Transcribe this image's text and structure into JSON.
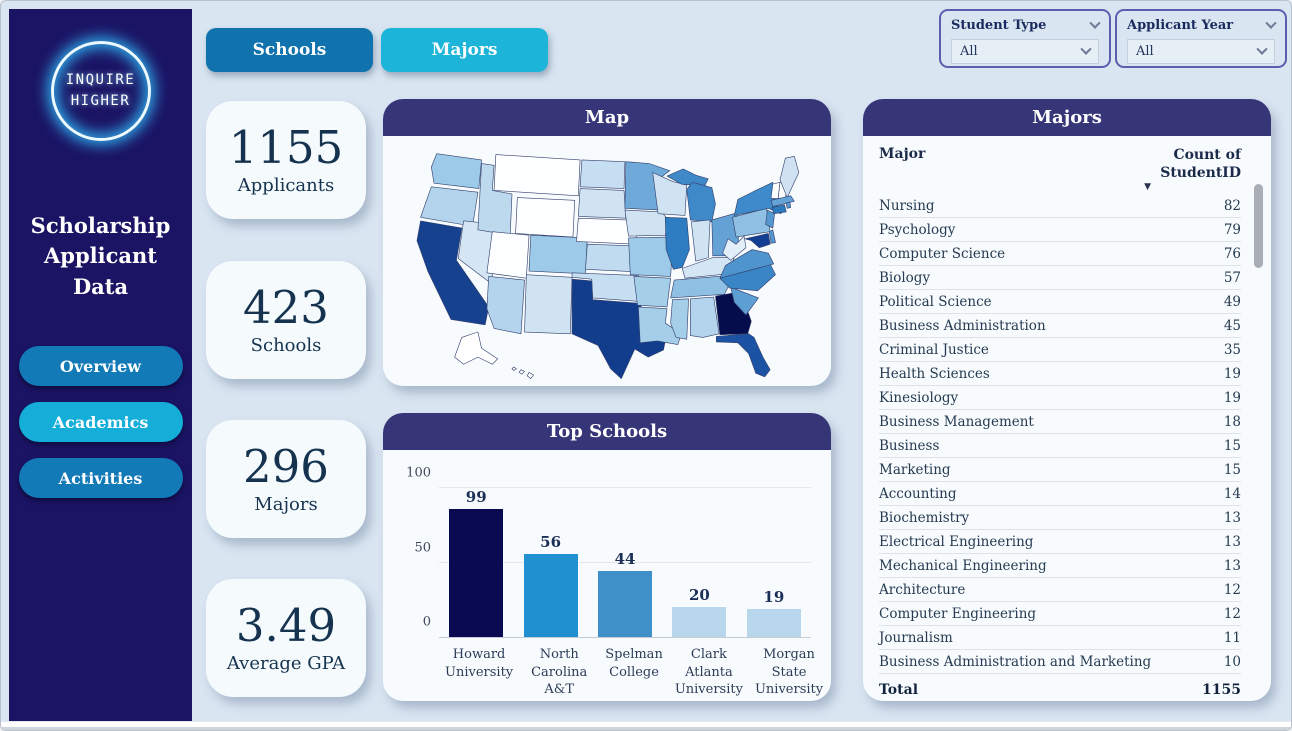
{
  "sidebar": {
    "logo": {
      "line1": "INQUIRE",
      "line2": "HIGHER"
    },
    "title": "Scholarship Applicant Data",
    "nav": [
      {
        "label": "Overview",
        "active": false
      },
      {
        "label": "Academics",
        "active": true
      },
      {
        "label": "Activities",
        "active": false
      }
    ]
  },
  "tabs": [
    {
      "label": "Schools",
      "color": "#1173ae"
    },
    {
      "label": "Majors",
      "color": "#1cb5d9"
    }
  ],
  "filters": [
    {
      "label": "Student Type",
      "value": "All"
    },
    {
      "label": "Applicant Year",
      "value": "All"
    }
  ],
  "kpis": [
    {
      "value": "1155",
      "label": "Applicants"
    },
    {
      "value": "423",
      "label": "Schools"
    },
    {
      "value": "296",
      "label": "Majors"
    },
    {
      "value": "3.49",
      "label": "Average GPA"
    }
  ],
  "panels": {
    "map": {
      "title": "Map"
    },
    "top_schools": {
      "title": "Top Schools"
    },
    "majors": {
      "title": "Majors"
    }
  },
  "theme": {
    "banner": "#353578",
    "sidebar": "#1b1464",
    "page_bg": "#d9e5f1",
    "nav_default": "#137ab8",
    "nav_active": "#14aed9",
    "neon": "#2fa9e8"
  },
  "chart_data": [
    {
      "type": "heatmap",
      "subtype": "us-choropleth",
      "title": "Map",
      "legend": "darker blue = more applicants from that state",
      "no_data_fill": "#ffffff",
      "states": [
        {
          "id": "WA",
          "fill": "#9ccae8"
        },
        {
          "id": "OR",
          "fill": "#b3d4ec"
        },
        {
          "id": "CA",
          "fill": "#15418f"
        },
        {
          "id": "NV",
          "fill": "#d4e6f4"
        },
        {
          "id": "ID",
          "fill": "#bdd9ee"
        },
        {
          "id": "MT",
          "fill": "#fdfeff"
        },
        {
          "id": "WY",
          "fill": "#fdfeff"
        },
        {
          "id": "UT",
          "fill": "#fdfeff"
        },
        {
          "id": "CO",
          "fill": "#9ccae8"
        },
        {
          "id": "AZ",
          "fill": "#b3d4ec"
        },
        {
          "id": "NM",
          "fill": "#cfe3f3"
        },
        {
          "id": "ND",
          "fill": "#c6def1"
        },
        {
          "id": "SD",
          "fill": "#cfe3f3"
        },
        {
          "id": "NE",
          "fill": "#fdfeff"
        },
        {
          "id": "KS",
          "fill": "#c0dbef"
        },
        {
          "id": "OK",
          "fill": "#c6def1"
        },
        {
          "id": "TX",
          "fill": "#123c8c"
        },
        {
          "id": "MN",
          "fill": "#6ea9da"
        },
        {
          "id": "IA",
          "fill": "#cfe3f3"
        },
        {
          "id": "MO",
          "fill": "#9ccae8"
        },
        {
          "id": "AR",
          "fill": "#a5cfe9"
        },
        {
          "id": "LA",
          "fill": "#a5cfe9"
        },
        {
          "id": "WI",
          "fill": "#cfe3f3"
        },
        {
          "id": "IL",
          "fill": "#2e7cc2"
        },
        {
          "id": "MI",
          "fill": "#4089c9"
        },
        {
          "id": "IN",
          "fill": "#cfe3f3"
        },
        {
          "id": "OH",
          "fill": "#64a2d5"
        },
        {
          "id": "KY",
          "fill": "#d4e6f4"
        },
        {
          "id": "TN",
          "fill": "#8fc0e3"
        },
        {
          "id": "MS",
          "fill": "#a5cfe9"
        },
        {
          "id": "AL",
          "fill": "#b3d4ec"
        },
        {
          "id": "GA",
          "fill": "#060d4d"
        },
        {
          "id": "FL",
          "fill": "#1b52a4"
        },
        {
          "id": "SC",
          "fill": "#5d9fd3"
        },
        {
          "id": "NC",
          "fill": "#3a85c6"
        },
        {
          "id": "VA",
          "fill": "#4f94cd"
        },
        {
          "id": "WV",
          "fill": "#e2eef8"
        },
        {
          "id": "PA",
          "fill": "#8fc0e3"
        },
        {
          "id": "NY",
          "fill": "#3e8aca"
        },
        {
          "id": "VT",
          "fill": "#ffffff"
        },
        {
          "id": "NH",
          "fill": "#ffffff"
        },
        {
          "id": "ME",
          "fill": "#cfe2f2"
        },
        {
          "id": "MA",
          "fill": "#64a3d6"
        },
        {
          "id": "CT",
          "fill": "#2e7abf"
        },
        {
          "id": "RI",
          "fill": "#5598d0"
        },
        {
          "id": "NJ",
          "fill": "#5598d0"
        },
        {
          "id": "MD",
          "fill": "#123f92"
        },
        {
          "id": "DE",
          "fill": "#5598d0"
        },
        {
          "id": "AK",
          "fill": "#ffffff"
        },
        {
          "id": "HI",
          "fill": "#ffffff"
        }
      ]
    },
    {
      "type": "bar",
      "title": "Top Schools",
      "categories": [
        "Howard University",
        "North Carolina A&T State University",
        "Spelman College",
        "Clark Atlanta University",
        "Morgan State University"
      ],
      "values": [
        99,
        56,
        44,
        20,
        19
      ],
      "bar_colors": [
        "#0a0a52",
        "#2190d0",
        "#3f90c9",
        "#b9d7ec",
        "#b9d7ec"
      ],
      "xlabel": "",
      "ylabel": "",
      "ylim": [
        0,
        100
      ],
      "yticks": [
        0,
        50,
        100
      ],
      "grid": true,
      "legend": "none"
    },
    {
      "type": "table",
      "title": "Majors",
      "columns": [
        "Major",
        "Count of StudentID"
      ],
      "sort": {
        "column": "Count of StudentID",
        "direction": "desc"
      },
      "rows": [
        [
          "Nursing",
          82
        ],
        [
          "Psychology",
          79
        ],
        [
          "Computer Science",
          76
        ],
        [
          "Biology",
          57
        ],
        [
          "Political Science",
          49
        ],
        [
          "Business Administration",
          45
        ],
        [
          "Criminal Justice",
          35
        ],
        [
          "Health Sciences",
          19
        ],
        [
          "Kinesiology",
          19
        ],
        [
          "Business Management",
          18
        ],
        [
          "Business",
          15
        ],
        [
          "Marketing",
          15
        ],
        [
          "Accounting",
          14
        ],
        [
          "Biochemistry",
          13
        ],
        [
          "Electrical Engineering",
          13
        ],
        [
          "Mechanical Engineering",
          13
        ],
        [
          "Architecture",
          12
        ],
        [
          "Computer Engineering",
          12
        ],
        [
          "Journalism",
          11
        ],
        [
          "Business Administration and Marketing",
          10
        ]
      ],
      "total": {
        "label": "Total",
        "value": "1155"
      }
    }
  ]
}
